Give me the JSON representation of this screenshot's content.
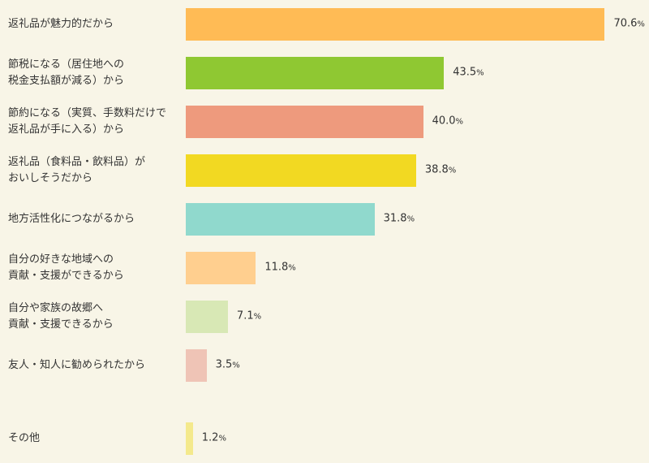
{
  "chart_data": {
    "type": "bar",
    "orientation": "horizontal",
    "xlim": [
      0,
      73
    ],
    "unit": "%",
    "categories": [
      "返礼品が魅力的だから",
      "節税になる（居住地への\n税金支払額が減る）から",
      "節約になる（実質、手数料だけで\n返礼品が手に入る）から",
      "返礼品（食料品・飲料品）が\nおいしそうだから",
      "地方活性化につながるから",
      "自分の好きな地域への\n貢献・支援ができるから",
      "自分や家族の故郷へ\n貢献・支援できるから",
      "友人・知人に勧められたから",
      "その他"
    ],
    "values": [
      70.6,
      43.5,
      40.0,
      38.8,
      31.8,
      11.8,
      7.1,
      3.5,
      1.2
    ],
    "value_labels": [
      "70.6",
      "43.5",
      "40.0",
      "38.8",
      "31.8",
      "11.8",
      "7.1",
      "3.5",
      "1.2"
    ],
    "colors": [
      "#ffbb55",
      "#8fc832",
      "#ee9a7d",
      "#f2d922",
      "#90d9cd",
      "#ffcf8f",
      "#d8e8b5",
      "#efc4b6",
      "#f4e98c"
    ],
    "grid": false,
    "legend": "none"
  }
}
